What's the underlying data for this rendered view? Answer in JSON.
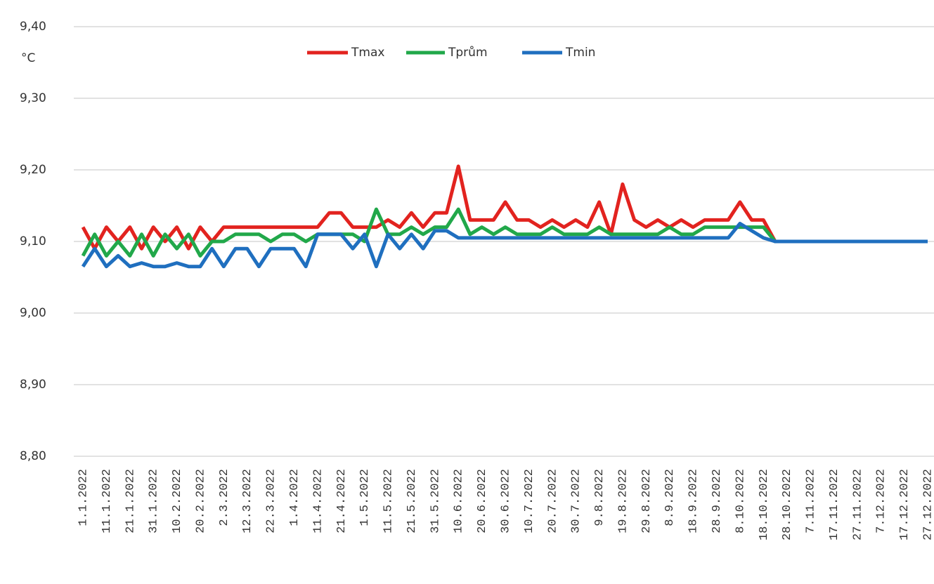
{
  "chart_data": {
    "type": "line",
    "y_label": "°C",
    "categories": [
      "1.1.2022",
      null,
      "11.1.2022",
      null,
      "21.1.2022",
      null,
      "31.1.2022",
      null,
      "10.2.2022",
      null,
      "20.2.2022",
      null,
      "2.3.2022",
      null,
      "12.3.2022",
      null,
      "22.3.2022",
      null,
      "1.4.2022",
      null,
      "11.4.2022",
      null,
      "21.4.2022",
      null,
      "1.5.2022",
      null,
      "11.5.2022",
      null,
      "21.5.2022",
      null,
      "31.5.2022",
      null,
      "10.6.2022",
      null,
      "20.6.2022",
      null,
      "30.6.2022",
      null,
      "10.7.2022",
      null,
      "20.7.2022",
      null,
      "30.7.2022",
      null,
      "9.8.2022",
      null,
      "19.8.2022",
      null,
      "29.8.2022",
      null,
      "8.9.2022",
      null,
      "18.9.2022",
      null,
      "28.9.2022",
      null,
      "8.10.2022",
      null,
      "18.10.2022",
      null,
      "28.10.2022",
      null,
      "7.11.2022",
      null,
      "17.11.2022",
      null,
      "27.11.2022",
      null,
      "7.12.2022",
      null,
      "17.12.2022",
      null,
      "27.12.2022"
    ],
    "series": [
      {
        "name": "Tmax",
        "color": "#e2231f",
        "values": [
          9.12,
          9.09,
          9.12,
          9.1,
          9.12,
          9.09,
          9.12,
          9.1,
          9.12,
          9.09,
          9.12,
          9.1,
          9.12,
          9.12,
          9.12,
          9.12,
          9.12,
          9.12,
          9.12,
          9.12,
          9.12,
          9.14,
          9.14,
          9.12,
          9.12,
          9.12,
          9.13,
          9.12,
          9.14,
          9.12,
          9.14,
          9.14,
          9.205,
          9.13,
          9.13,
          9.13,
          9.155,
          9.13,
          9.13,
          9.12,
          9.13,
          9.12,
          9.13,
          9.12,
          9.155,
          9.11,
          9.18,
          9.13,
          9.12,
          9.13,
          9.12,
          9.13,
          9.12,
          9.13,
          9.13,
          9.13,
          9.155,
          9.13,
          9.13,
          9.1,
          9.1,
          9.1,
          9.1,
          9.1,
          9.1,
          9.1,
          9.1,
          9.1,
          9.1,
          9.1,
          9.1,
          9.1,
          9.1
        ]
      },
      {
        "name": "Tprům",
        "color": "#21a84a",
        "values": [
          9.08,
          9.11,
          9.08,
          9.1,
          9.08,
          9.11,
          9.08,
          9.11,
          9.09,
          9.11,
          9.08,
          9.1,
          9.1,
          9.11,
          9.11,
          9.11,
          9.1,
          9.11,
          9.11,
          9.1,
          9.11,
          9.11,
          9.11,
          9.11,
          9.1,
          9.145,
          9.11,
          9.11,
          9.12,
          9.11,
          9.12,
          9.12,
          9.145,
          9.11,
          9.12,
          9.11,
          9.12,
          9.11,
          9.11,
          9.11,
          9.12,
          9.11,
          9.11,
          9.11,
          9.12,
          9.11,
          9.11,
          9.11,
          9.11,
          9.11,
          9.12,
          9.11,
          9.11,
          9.12,
          9.12,
          9.12,
          9.12,
          9.12,
          9.12,
          9.1,
          9.1,
          9.1,
          9.1,
          9.1,
          9.1,
          9.1,
          9.1,
          9.1,
          9.1,
          9.1,
          9.1,
          9.1,
          9.1
        ]
      },
      {
        "name": "Tmin",
        "color": "#1f6fbf",
        "values": [
          9.065,
          9.09,
          9.065,
          9.08,
          9.065,
          9.07,
          9.065,
          9.065,
          9.07,
          9.065,
          9.065,
          9.09,
          9.065,
          9.09,
          9.09,
          9.065,
          9.09,
          9.09,
          9.09,
          9.065,
          9.11,
          9.11,
          9.11,
          9.09,
          9.11,
          9.065,
          9.11,
          9.09,
          9.11,
          9.09,
          9.115,
          9.115,
          9.105,
          9.105,
          9.105,
          9.105,
          9.105,
          9.105,
          9.105,
          9.105,
          9.105,
          9.105,
          9.105,
          9.105,
          9.105,
          9.105,
          9.105,
          9.105,
          9.105,
          9.105,
          9.105,
          9.105,
          9.105,
          9.105,
          9.105,
          9.105,
          9.125,
          9.115,
          9.105,
          9.1,
          9.1,
          9.1,
          9.1,
          9.1,
          9.1,
          9.1,
          9.1,
          9.1,
          9.1,
          9.1,
          9.1,
          9.1,
          9.1
        ]
      }
    ],
    "ylim": [
      8.8,
      9.4
    ],
    "yticks": [
      {
        "value": 8.8,
        "label": "8,80"
      },
      {
        "value": 8.9,
        "label": "8,90"
      },
      {
        "value": 9.0,
        "label": "9,00"
      },
      {
        "value": 9.1,
        "label": "9,10"
      },
      {
        "value": 9.2,
        "label": "9,20"
      },
      {
        "value": 9.3,
        "label": "9,30"
      },
      {
        "value": 9.4,
        "label": "9,40"
      }
    ],
    "grid": true,
    "legend": "top"
  }
}
